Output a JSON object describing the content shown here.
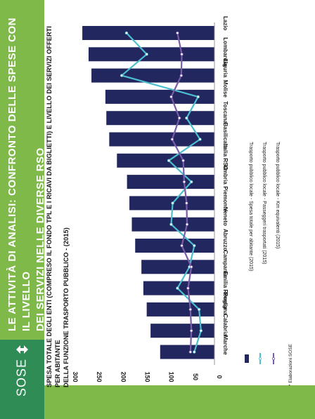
{
  "slide": {
    "title_line1": "LE ATTIVITÀ DI ANALISI: CONFRONTO DELLE SPESE CON IL LIVELLO",
    "title_line2": "DEI SERVIZI NELLE DIVERSE RSO",
    "website": "www.sose.it",
    "logo": "SOSE",
    "source": "* Elaborazioni SOSE",
    "colors": {
      "green": "#7fb94a",
      "dark_green": "#2e8c54",
      "bar": "#23275f",
      "line_cyan": "#4bbfd0",
      "line_purple": "#7a5ca8"
    }
  },
  "chart_data": {
    "type": "bar",
    "title_line1": "SPESA TOTALE DEGLI ENTI (COMPRESO IL FONDO TPL E I RICAVI DA BIGLIETTI) E LIVELLO DEI SERVIZI OFFERTI PER ABITANTE",
    "title_line2": "DELLA FUNZIONE TRASPORTO PUBBLICO - (2015)",
    "categories": [
      "Lazio",
      "Lombardia",
      "Liguria",
      "Molise",
      "Toscana",
      "Basilicata",
      "Italia RSO",
      "Umbria",
      "Piemonte",
      "Veneto",
      "Abruzzo",
      "Campania",
      "Emilia Romagna",
      "Puglia",
      "Calabria",
      "Marche"
    ],
    "ylim": [
      0,
      300
    ],
    "ticks": [
      0,
      50,
      100,
      150,
      200,
      250,
      300
    ],
    "series": [
      {
        "name": "Trasporto pubblico locale - Spesa totale per abitante (2015)",
        "kind": "bar",
        "values": [
          275,
          262,
          256,
          227,
          225,
          219,
          203,
          182,
          177,
          172,
          165,
          152,
          148,
          141,
          133,
          113
        ]
      },
      {
        "name": "Trasporto pubblico locale - Passeggeri trasportati  (2015)",
        "kind": "line",
        "values": [
          183,
          141,
          193,
          34,
          58,
          30,
          95,
          48,
          87,
          90,
          42,
          52,
          77,
          32,
          28,
          42
        ]
      },
      {
        "name": "Trasporto pubblico locale - Km equivalenti (2015)",
        "kind": "line",
        "values": [
          77,
          68,
          69,
          90,
          73,
          88,
          65,
          63,
          58,
          57,
          68,
          48,
          55,
          50,
          48,
          50
        ]
      }
    ],
    "grid": false,
    "legend": "bottom"
  }
}
